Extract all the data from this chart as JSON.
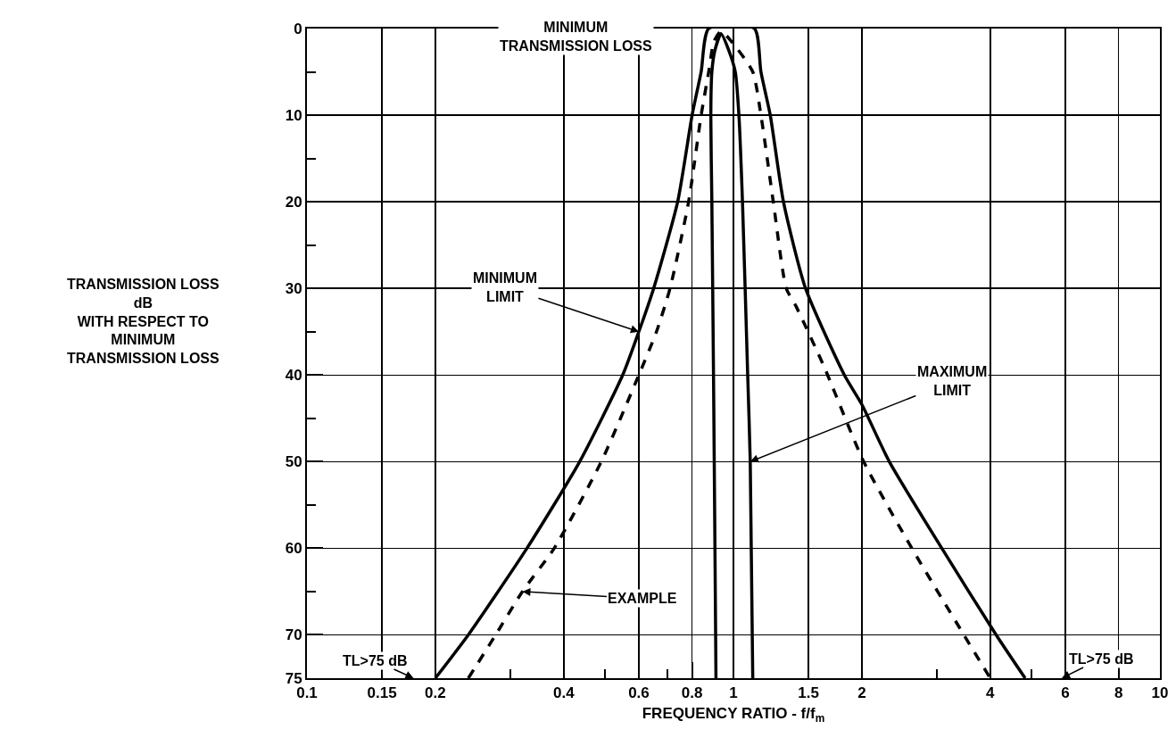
{
  "chart_data": {
    "type": "line",
    "xlabel": "FREQUENCY RATIO - f/f$_{m}$",
    "ylabel": "TRANSMISSION LOSS\ndB\nWITH RESPECT TO\nMINIMUM\nTRANSMISSION LOSS",
    "log": "x",
    "xlim": [
      0.1,
      10
    ],
    "xticks": [
      0.1,
      0.15,
      0.2,
      {
        "value": 0.3,
        "label": null
      },
      0.4,
      {
        "value": 0.5,
        "label": null
      },
      0.6,
      {
        "value": 0.7,
        "label": null
      },
      0.8,
      1,
      1.5,
      2,
      {
        "value": 3,
        "label": null
      },
      4,
      {
        "value": 5,
        "label": null
      },
      6,
      8,
      10
    ],
    "ylim": [
      75,
      0
    ],
    "yticks": [
      0,
      {
        "value": 5,
        "label": null
      },
      10,
      {
        "value": 15,
        "label": null
      },
      20,
      {
        "value": 25,
        "label": null
      },
      30,
      {
        "value": 35,
        "label": null
      },
      40,
      {
        "value": 45,
        "label": null
      },
      50,
      {
        "value": 55,
        "label": null
      },
      60,
      {
        "value": 65,
        "label": null
      },
      70,
      75
    ],
    "grid": true,
    "marker": "none",
    "series": [
      {
        "color": "#000000",
        "line_style": "solid",
        "x": [
          0.2,
          0.239,
          0.328,
          0.436,
          0.55,
          0.6,
          0.65,
          0.74,
          0.8,
          0.84,
          0.875,
          1.12,
          1.16,
          1.22,
          1.31,
          1.476,
          1.82,
          2.0,
          2.32,
          3.08,
          4.13,
          4.83
        ],
        "values": [
          75,
          70,
          60,
          50,
          40,
          35,
          30,
          20,
          10,
          5,
          0,
          0,
          5,
          10,
          20,
          30,
          40,
          43.4,
          50,
          60,
          70,
          75
        ]
      },
      {
        "color": "#000000",
        "line_style": "dashed",
        "x": [
          0.239,
          0.277,
          0.32,
          0.38,
          0.49,
          0.6,
          0.66,
          0.71,
          0.785,
          0.84,
          0.875,
          0.9,
          0.935,
          0.99,
          1.11,
          1.16,
          1.24,
          1.33,
          1.4,
          1.63,
          2.02,
          2.62,
          3.47,
          4.0
        ],
        "values": [
          75,
          70,
          65,
          60,
          50,
          40,
          35,
          30,
          20,
          10,
          5,
          1.5,
          0.3,
          1.5,
          5,
          10,
          20,
          30,
          32,
          39,
          50,
          60,
          70,
          75
        ]
      },
      {
        "color": "#000000",
        "line_style": "solid",
        "x": [
          0.91,
          0.905,
          0.898,
          0.89,
          0.885,
          0.89,
          0.905,
          0.935,
          0.975,
          1.01,
          1.03,
          1.05,
          1.08,
          1.095,
          1.11
        ],
        "values": [
          75,
          60,
          40,
          20,
          10,
          5,
          2.5,
          0.6,
          2.5,
          5,
          10,
          20,
          40,
          50,
          75
        ]
      }
    ],
    "annotations": [
      "MINIMUM\nTRANSMISSION LOSS",
      {
        "text": "MINIMUM\nLIMIT",
        "x": 0.6,
        "y": 35
      },
      {
        "text": "MAXIMUM\nLIMIT",
        "x": 1.095,
        "y": 50
      },
      {
        "text": "EXAMPLE",
        "x": 0.32,
        "y": 65
      },
      "TL>75 dB",
      "TL>75 dB"
    ]
  }
}
